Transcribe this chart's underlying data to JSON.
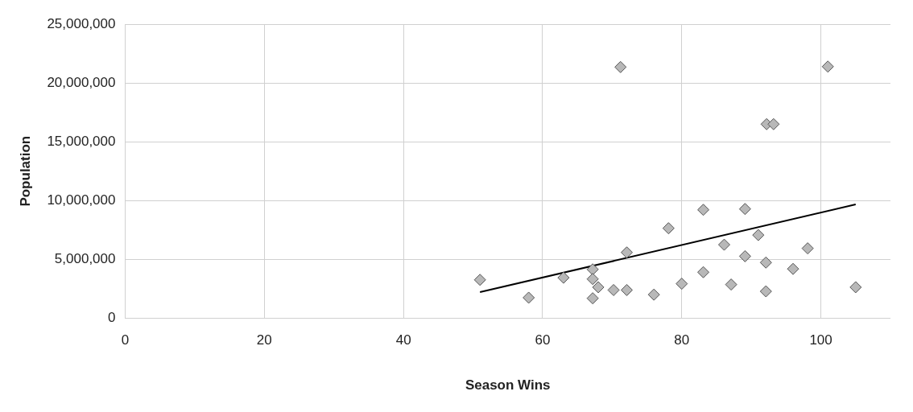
{
  "chart_data": {
    "type": "scatter",
    "xlabel": "Season Wins",
    "ylabel": "Population",
    "x": [
      51,
      58,
      63,
      67.2,
      67.2,
      68,
      67.2,
      70.2,
      72.1,
      72.1,
      71.2,
      76,
      78.1,
      80,
      83.1,
      83.1,
      86.1,
      87.1,
      89.1,
      89.1,
      91,
      92.1,
      92.1,
      92.2,
      93.2,
      96,
      98.1,
      101,
      105
    ],
    "series": [
      {
        "color": "#b8b8b8",
        "marker": "diamond",
        "values": [
          3250000,
          1730000,
          3430000,
          4140000,
          3320000,
          2620000,
          1680000,
          2380000,
          2380000,
          5580000,
          21360000,
          1990000,
          7640000,
          2920000,
          9210000,
          3900000,
          6240000,
          2850000,
          9280000,
          5260000,
          7060000,
          4720000,
          2270000,
          16500000,
          16500000,
          4180000,
          5930000,
          21400000,
          2620000
        ]
      },
      {
        "type": "line",
        "color": "#000000",
        "marker": "none",
        "x": [
          51,
          105
        ],
        "values": [
          2200000,
          9670000
        ]
      }
    ],
    "xlim": [
      0,
      110
    ],
    "xticks": [
      0,
      20,
      40,
      60,
      80,
      100
    ],
    "ylim": [
      0,
      25000000
    ],
    "yticks": [
      0,
      {
        "value": 5000000,
        "label": "5,000,000"
      },
      {
        "value": 10000000,
        "label": "10,000,000"
      },
      {
        "value": 15000000,
        "label": "15,000,000"
      },
      {
        "value": 20000000,
        "label": "20,000,000"
      },
      {
        "value": 25000000,
        "label": "25,000,000"
      }
    ],
    "grid": true,
    "legend": false
  }
}
